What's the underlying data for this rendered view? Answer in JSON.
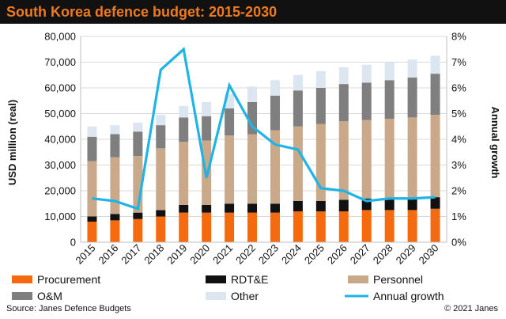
{
  "header": {
    "title": "South Korea defence budget: 2015-2030"
  },
  "footer": {
    "source": "Source: Janes Defence Budgets",
    "copyright": "© 2021 Janes"
  },
  "colors": {
    "procurement": "#f56a0f",
    "rdte": "#111111",
    "personnel": "#c9a98a",
    "om": "#7f7f7f",
    "other": "#dbe6f1",
    "growth": "#1eb4e6",
    "title_bg": "#111111",
    "title_fg": "#f07a1e"
  },
  "chart_data": {
    "type": "bar",
    "stacked": true,
    "title": "South Korea defence budget: 2015-2030",
    "categories": [
      "2015",
      "2016",
      "2017",
      "2018",
      "2019",
      "2020",
      "2021",
      "2022",
      "2023",
      "2024",
      "2025",
      "2026",
      "2027",
      "2028",
      "2029",
      "2030"
    ],
    "ylabel": "USD million (real)",
    "ylim": [
      0,
      80000
    ],
    "yticks": [
      "0",
      "10,000",
      "20,000",
      "30,000",
      "40,000",
      "50,000",
      "60,000",
      "70,000",
      "80,000"
    ],
    "y2label": "Annual growth",
    "y2lim": [
      0,
      8
    ],
    "y2ticks": [
      "0%",
      "1%",
      "2%",
      "3%",
      "4%",
      "5%",
      "6%",
      "7%",
      "8%"
    ],
    "series": [
      {
        "name": "Procurement",
        "color_key": "procurement",
        "values": [
          8000,
          8500,
          9000,
          10000,
          11500,
          11500,
          11500,
          11500,
          11500,
          12000,
          12000,
          12000,
          12500,
          12500,
          12500,
          13000
        ]
      },
      {
        "name": "RDT&E",
        "color_key": "rdte",
        "values": [
          2000,
          2500,
          2500,
          2500,
          3000,
          3000,
          3500,
          3500,
          3500,
          4000,
          4000,
          4500,
          4500,
          4500,
          4500,
          4500
        ]
      },
      {
        "name": "Personnel",
        "color_key": "personnel",
        "values": [
          21500,
          22000,
          22000,
          24000,
          24500,
          25000,
          26500,
          27000,
          28500,
          29000,
          30000,
          30500,
          30500,
          31000,
          31500,
          32000
        ]
      },
      {
        "name": "O&M",
        "color_key": "om",
        "values": [
          9500,
          9000,
          9500,
          9000,
          9500,
          9500,
          10500,
          12500,
          13500,
          14000,
          14000,
          14500,
          14500,
          15000,
          15500,
          16000
        ]
      },
      {
        "name": "Other",
        "color_key": "other",
        "values": [
          4000,
          3500,
          3500,
          4000,
          4500,
          5500,
          5500,
          6000,
          6000,
          6000,
          6500,
          6500,
          7000,
          7000,
          7000,
          7000
        ]
      },
      {
        "name": "Annual growth",
        "color_key": "growth",
        "axis": "right",
        "type": "line",
        "values": [
          1.7,
          1.6,
          1.3,
          6.7,
          7.5,
          2.5,
          6.1,
          4.5,
          3.8,
          3.6,
          2.1,
          2.0,
          1.6,
          1.7,
          1.7,
          1.75
        ]
      }
    ],
    "legend_position": "bottom"
  }
}
